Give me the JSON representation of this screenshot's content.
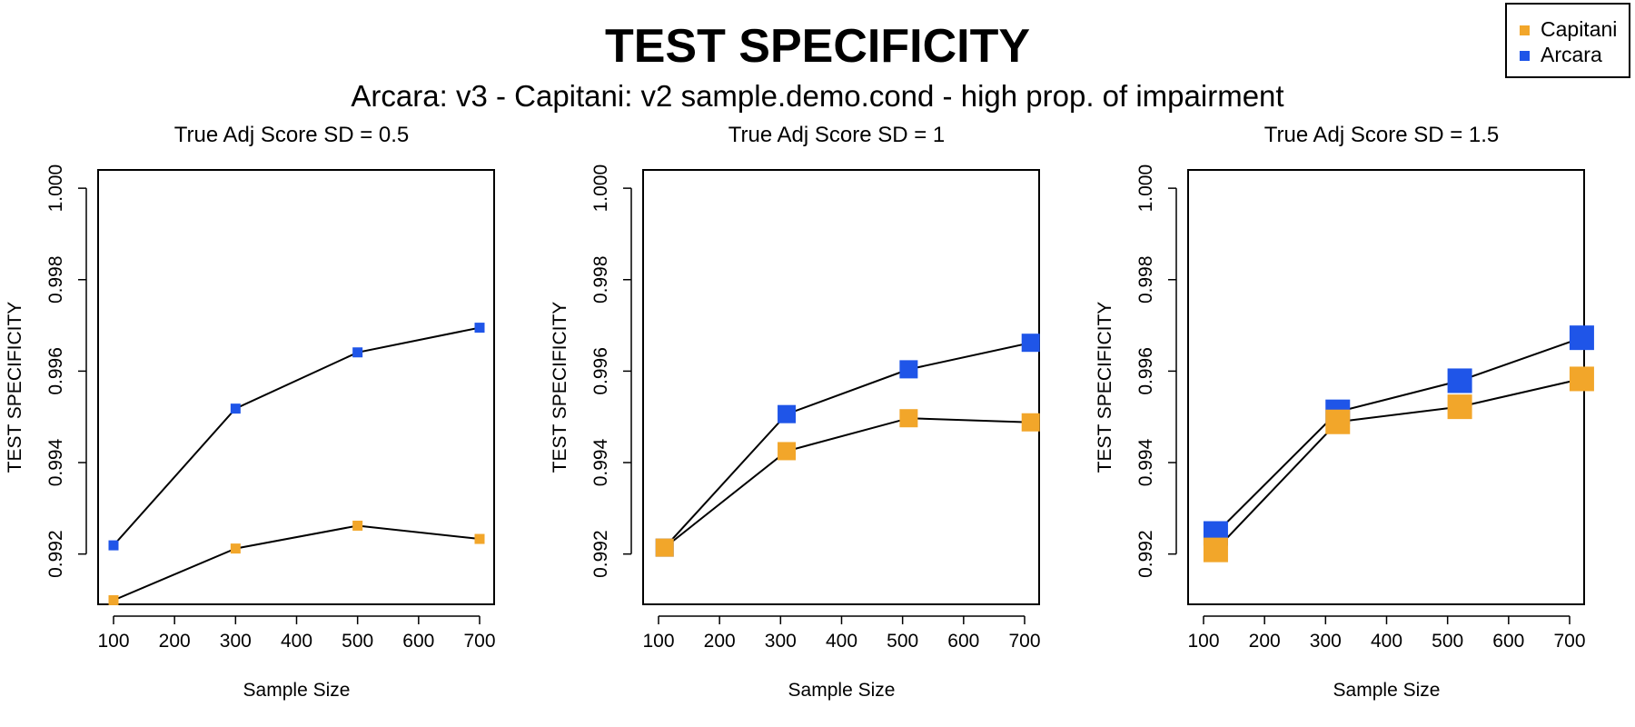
{
  "title": "TEST SPECIFICITY",
  "subtitle": "Arcara: v3 - Capitani: v2 sample.demo.cond - high prop. of impairment",
  "legend": {
    "placement": "top-right",
    "items": [
      {
        "label": "Capitani",
        "color": "#F2A62A"
      },
      {
        "label": "Arcara",
        "color": "#1F55E8"
      }
    ]
  },
  "chart_data": [
    {
      "type": "line",
      "title": "True Adj Score SD = 0.5",
      "xlabel": "Sample Size",
      "ylabel": "TEST SPECIFICITY",
      "xlim": [
        100,
        700
      ],
      "ylim": [
        0.9909,
        1.0004
      ],
      "xticks": [
        "100",
        "200",
        "300",
        "400",
        "500",
        "600",
        "700"
      ],
      "yticks": [
        "0.992",
        "0.994",
        "0.996",
        "0.998",
        "1.000"
      ],
      "marker_size": "small",
      "series": [
        {
          "name": "Arcara",
          "color": "#1F55E8",
          "x": [
            100,
            300,
            500,
            700
          ],
          "values": [
            0.99219,
            0.99518,
            0.99641,
            0.99695
          ]
        },
        {
          "name": "Capitani",
          "color": "#F2A62A",
          "x": [
            100,
            300,
            500,
            700
          ],
          "values": [
            0.99099,
            0.99212,
            0.99262,
            0.99233
          ]
        }
      ]
    },
    {
      "type": "line",
      "title": "True Adj Score SD = 1",
      "xlabel": "Sample Size",
      "ylabel": "TEST SPECIFICITY",
      "xlim": [
        100,
        700
      ],
      "ylim": [
        0.9909,
        1.0004
      ],
      "xticks": [
        "100",
        "200",
        "300",
        "400",
        "500",
        "600",
        "700"
      ],
      "yticks": [
        "0.992",
        "0.994",
        "0.996",
        "0.998",
        "1.000"
      ],
      "marker_size": "medium",
      "series": [
        {
          "name": "Arcara",
          "color": "#1F55E8",
          "x": [
            110,
            310,
            510,
            710
          ],
          "values": [
            0.99214,
            0.99506,
            0.99604,
            0.99662
          ]
        },
        {
          "name": "Capitani",
          "color": "#F2A62A",
          "x": [
            110,
            310,
            510,
            710
          ],
          "values": [
            0.99214,
            0.99425,
            0.99497,
            0.99488
          ]
        }
      ]
    },
    {
      "type": "line",
      "title": "True Adj Score SD = 1.5",
      "xlabel": "Sample Size",
      "ylabel": "TEST SPECIFICITY",
      "xlim": [
        100,
        700
      ],
      "ylim": [
        0.9909,
        1.0004
      ],
      "xticks": [
        "100",
        "200",
        "300",
        "400",
        "500",
        "600",
        "700"
      ],
      "yticks": [
        "0.992",
        "0.994",
        "0.996",
        "0.998",
        "1.000"
      ],
      "marker_size": "large",
      "series": [
        {
          "name": "Arcara",
          "color": "#1F55E8",
          "x": [
            120,
            320,
            520,
            720
          ],
          "values": [
            0.99245,
            0.99511,
            0.99579,
            0.99673
          ]
        },
        {
          "name": "Capitani",
          "color": "#F2A62A",
          "x": [
            120,
            320,
            520,
            720
          ],
          "values": [
            0.99209,
            0.99489,
            0.99522,
            0.99583
          ]
        }
      ]
    }
  ]
}
